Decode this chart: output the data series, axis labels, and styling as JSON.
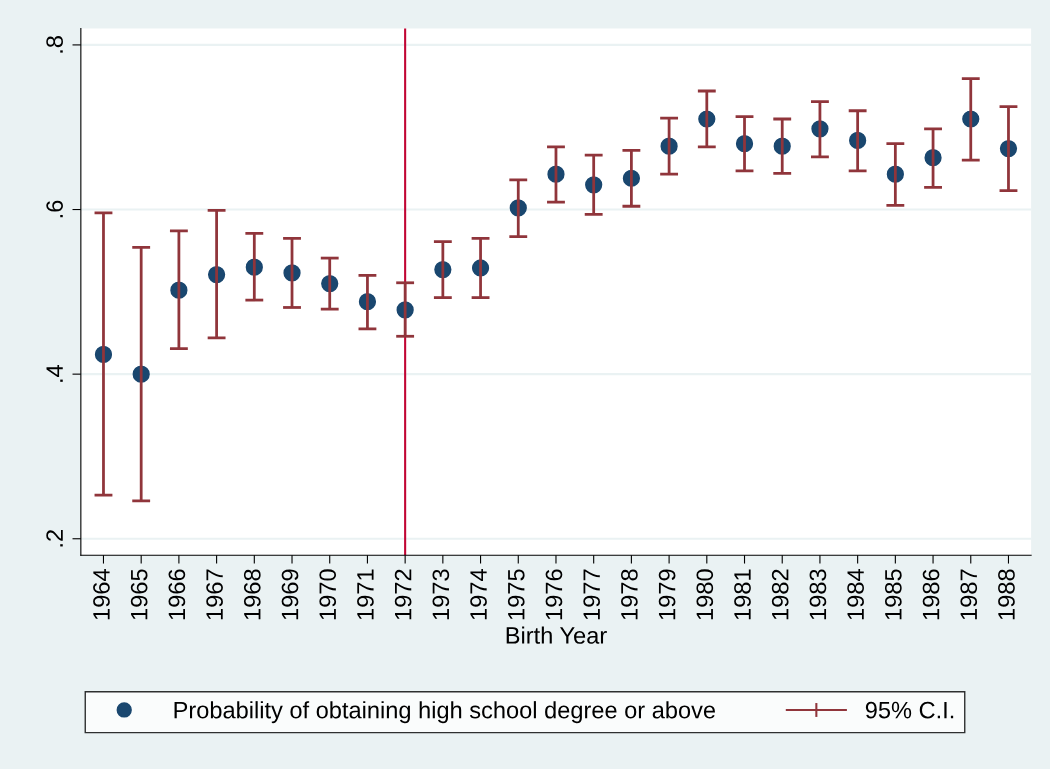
{
  "chart_data": {
    "type": "scatter",
    "xlabel": "Birth Year",
    "categories": [
      "1964",
      "1965",
      "1966",
      "1967",
      "1968",
      "1969",
      "1970",
      "1971",
      "1972",
      "1973",
      "1974",
      "1975",
      "1976",
      "1977",
      "1978",
      "1979",
      "1980",
      "1981",
      "1982",
      "1983",
      "1984",
      "1985",
      "1986",
      "1987",
      "1988"
    ],
    "series": [
      {
        "name": "Probability of obtaining high school degree or above",
        "color": "#1a476f",
        "values": [
          0.424,
          0.4,
          0.502,
          0.521,
          0.53,
          0.523,
          0.51,
          0.488,
          0.478,
          0.527,
          0.529,
          0.602,
          0.643,
          0.63,
          0.638,
          0.677,
          0.71,
          0.68,
          0.677,
          0.698,
          0.684,
          0.643,
          0.663,
          0.71,
          0.674
        ],
        "errors": [
          [
            0.253,
            0.596
          ],
          [
            0.246,
            0.554
          ],
          [
            0.431,
            0.574
          ],
          [
            0.444,
            0.599
          ],
          [
            0.49,
            0.571
          ],
          [
            0.481,
            0.565
          ],
          [
            0.479,
            0.541
          ],
          [
            0.455,
            0.52
          ],
          [
            0.446,
            0.511
          ],
          [
            0.493,
            0.561
          ],
          [
            0.493,
            0.565
          ],
          [
            0.567,
            0.636
          ],
          [
            0.609,
            0.676
          ],
          [
            0.594,
            0.666
          ],
          [
            0.604,
            0.672
          ],
          [
            0.643,
            0.711
          ],
          [
            0.676,
            0.744
          ],
          [
            0.647,
            0.713
          ],
          [
            0.644,
            0.71
          ],
          [
            0.664,
            0.731
          ],
          [
            0.647,
            0.72
          ],
          [
            0.605,
            0.68
          ],
          [
            0.627,
            0.698
          ],
          [
            0.66,
            0.759
          ],
          [
            0.623,
            0.725
          ]
        ]
      },
      {
        "name": "95% C.I.",
        "color": "#90353b",
        "marker": "none",
        "values": [
          null,
          null,
          null,
          null,
          null,
          null,
          null,
          null,
          null,
          null,
          null,
          null,
          null,
          null,
          null,
          null,
          null,
          null,
          null,
          null,
          null,
          null,
          null,
          null,
          null
        ]
      }
    ],
    "ylim": [
      0.18,
      0.82
    ],
    "yticks": [
      {
        "value": 0.2,
        "label": ".2"
      },
      {
        "value": 0.4,
        "label": ".4"
      },
      {
        "value": 0.6,
        "label": ".6"
      },
      {
        "value": 0.8,
        "label": ".8"
      }
    ],
    "ref_lines": [
      {
        "axis": "x",
        "value": "1972",
        "color": "#c10534"
      }
    ],
    "grid": "y",
    "legend": "bottom",
    "marker": "circle"
  }
}
